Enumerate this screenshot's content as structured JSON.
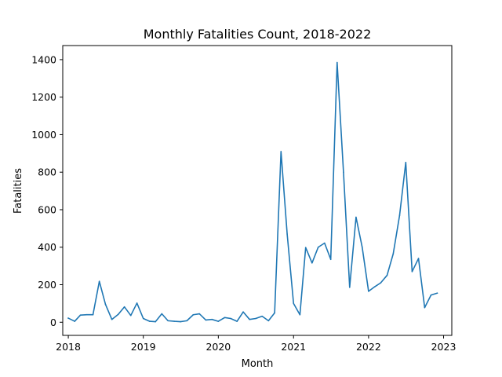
{
  "chart_data": {
    "type": "line",
    "title": "Monthly Fatalities Count, 2018-2022",
    "xlabel": "Month",
    "ylabel": "Fatalities",
    "x_ticks": [
      "2018",
      "2019",
      "2020",
      "2021",
      "2022",
      "2023"
    ],
    "y_ticks": [
      "0",
      "200",
      "400",
      "600",
      "800",
      "1000",
      "1200",
      "1400"
    ],
    "xlim": [
      "2017-12-05",
      "2023-02-10"
    ],
    "ylim": [
      -70,
      1475
    ],
    "grid": false,
    "legend": "none",
    "series": [
      {
        "color": "#1f77b4",
        "x": [
          "2018-01",
          "2018-02",
          "2018-03",
          "2018-04",
          "2018-05",
          "2018-06",
          "2018-07",
          "2018-08",
          "2018-09",
          "2018-10",
          "2018-11",
          "2018-12",
          "2019-01",
          "2019-02",
          "2019-03",
          "2019-04",
          "2019-05",
          "2019-06",
          "2019-07",
          "2019-08",
          "2019-09",
          "2019-10",
          "2019-11",
          "2019-12",
          "2020-01",
          "2020-02",
          "2020-03",
          "2020-04",
          "2020-05",
          "2020-06",
          "2020-07",
          "2020-08",
          "2020-09",
          "2020-10",
          "2020-11",
          "2020-12",
          "2021-01",
          "2021-02",
          "2021-03",
          "2021-04",
          "2021-05",
          "2021-06",
          "2021-07",
          "2021-08",
          "2021-09",
          "2021-10",
          "2021-11",
          "2021-12",
          "2022-01",
          "2022-02",
          "2022-03",
          "2022-04",
          "2022-05",
          "2022-06",
          "2022-07",
          "2022-08",
          "2022-09",
          "2022-10",
          "2022-11",
          "2022-12"
        ],
        "values": [
          22,
          5,
          38,
          40,
          40,
          218,
          95,
          15,
          42,
          82,
          36,
          102,
          20,
          5,
          3,
          45,
          8,
          5,
          3,
          8,
          40,
          45,
          12,
          15,
          5,
          25,
          20,
          5,
          55,
          15,
          20,
          32,
          8,
          50,
          910,
          470,
          100,
          40,
          398,
          316,
          400,
          422,
          335,
          1385,
          800,
          186,
          560,
          400,
          165,
          190,
          210,
          250,
          365,
          570,
          852,
          270,
          340,
          78,
          145,
          155
        ]
      }
    ]
  }
}
